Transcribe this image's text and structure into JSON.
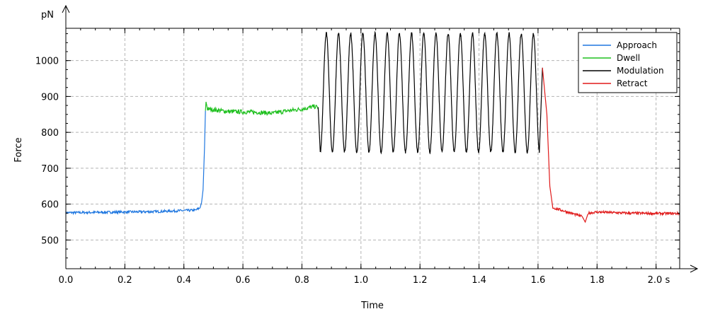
{
  "chart_data": {
    "type": "line",
    "xlabel": "Time",
    "ylabel": "Force",
    "x_unit": "s",
    "y_unit": "pN",
    "xlim": [
      0.0,
      2.08
    ],
    "ylim": [
      420,
      1090
    ],
    "x_ticks": [
      0.0,
      0.2,
      0.4,
      0.6,
      0.8,
      1.0,
      1.2,
      1.4,
      1.6,
      1.8,
      2.0
    ],
    "x_tick_labels": [
      "0.0",
      "0.2",
      "0.4",
      "0.6",
      "0.8",
      "1.0",
      "1.2",
      "1.4",
      "1.6",
      "1.8",
      "2.0 s"
    ],
    "y_ticks": [
      500,
      600,
      700,
      800,
      900,
      1000
    ],
    "y_tick_labels": [
      "500",
      "600",
      "700",
      "800",
      "900",
      "1000"
    ],
    "grid": true,
    "legend_position": "top-right",
    "series": [
      {
        "name": "Approach",
        "color": "#1f77e0",
        "points": [
          [
            0.0,
            576
          ],
          [
            0.1,
            577
          ],
          [
            0.2,
            578
          ],
          [
            0.3,
            579
          ],
          [
            0.4,
            582
          ],
          [
            0.44,
            583
          ],
          [
            0.455,
            590
          ],
          [
            0.46,
            605
          ],
          [
            0.465,
            640
          ],
          [
            0.47,
            760
          ],
          [
            0.473,
            860
          ]
        ]
      },
      {
        "name": "Dwell",
        "color": "#1fc01f",
        "points": [
          [
            0.473,
            860
          ],
          [
            0.475,
            885
          ],
          [
            0.48,
            865
          ],
          [
            0.55,
            858
          ],
          [
            0.65,
            856
          ],
          [
            0.7,
            853
          ],
          [
            0.75,
            860
          ],
          [
            0.8,
            865
          ],
          [
            0.84,
            872
          ],
          [
            0.855,
            870
          ]
        ]
      },
      {
        "name": "Modulation",
        "color": "#000000",
        "peak_force": 1075,
        "trough_force": 745,
        "cycles": 18,
        "points": [
          [
            0.855,
            870
          ],
          [
            0.86,
            750
          ],
          [
            1.0,
            1075
          ],
          [
            1.2,
            745
          ],
          [
            1.4,
            1075
          ],
          [
            1.6,
            745
          ],
          [
            1.615,
            980
          ]
        ]
      },
      {
        "name": "Retract",
        "color": "#e01a1a",
        "points": [
          [
            1.615,
            980
          ],
          [
            1.63,
            850
          ],
          [
            1.64,
            650
          ],
          [
            1.65,
            590
          ],
          [
            1.7,
            578
          ],
          [
            1.75,
            565
          ],
          [
            1.76,
            550
          ],
          [
            1.77,
            575
          ],
          [
            1.8,
            578
          ],
          [
            1.9,
            575
          ],
          [
            2.0,
            574
          ],
          [
            2.08,
            574
          ]
        ]
      }
    ]
  }
}
